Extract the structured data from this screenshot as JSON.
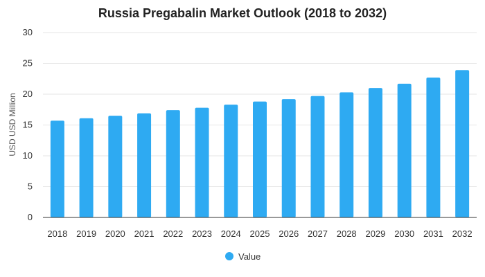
{
  "chart_data": {
    "type": "bar",
    "title": "Russia Pregabalin Market Outlook (2018 to 2032)",
    "xlabel": "",
    "ylabel": "USD USD Million",
    "categories": [
      "2018",
      "2019",
      "2020",
      "2021",
      "2022",
      "2023",
      "2024",
      "2025",
      "2026",
      "2027",
      "2028",
      "2029",
      "2030",
      "2031",
      "2032"
    ],
    "series": [
      {
        "name": "Value",
        "color": "#2eaaf2",
        "values": [
          15.7,
          16.1,
          16.5,
          16.9,
          17.4,
          17.8,
          18.3,
          18.8,
          19.2,
          19.7,
          20.3,
          21.0,
          21.7,
          22.7,
          23.9
        ]
      }
    ],
    "ylim": [
      0,
      30
    ],
    "yticks": [
      0,
      5,
      10,
      15,
      20,
      25,
      30
    ],
    "grid": true,
    "legend_position": "bottom-center"
  }
}
